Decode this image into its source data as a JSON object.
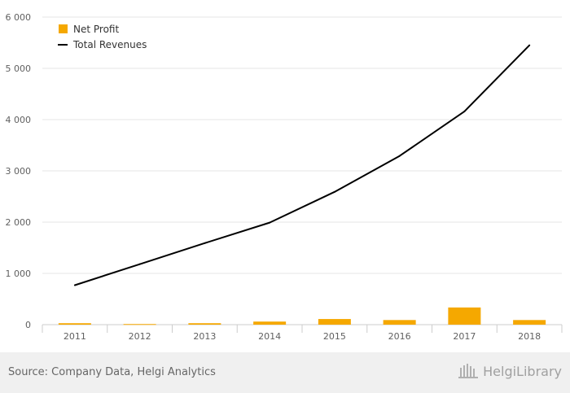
{
  "chart_data": {
    "type": "bar",
    "categories": [
      "2011",
      "2012",
      "2013",
      "2014",
      "2015",
      "2016",
      "2017",
      "2018"
    ],
    "series": [
      {
        "name": "Net Profit",
        "kind": "bar",
        "color": "#f5a800",
        "values": [
          28,
          12,
          28,
          60,
          110,
          90,
          335,
          90
        ]
      },
      {
        "name": "Total Revenues",
        "kind": "line",
        "color": "#000000",
        "values": [
          770,
          1180,
          1590,
          1990,
          2590,
          3290,
          4160,
          5450
        ]
      }
    ],
    "y_ticks": [
      {
        "value": 0,
        "label": "0"
      },
      {
        "value": 1000,
        "label": "1 000"
      },
      {
        "value": 2000,
        "label": "2 000"
      },
      {
        "value": 3000,
        "label": "3 000"
      },
      {
        "value": 4000,
        "label": "4 000"
      },
      {
        "value": 5000,
        "label": "5 000"
      },
      {
        "value": 6000,
        "label": "6 000"
      }
    ],
    "ylim": [
      0,
      6000
    ],
    "grid": true,
    "legend": {
      "position": "top-left",
      "items": [
        "Net Profit",
        "Total Revenues"
      ]
    },
    "title": "",
    "xlabel": "",
    "ylabel": ""
  },
  "footer": {
    "source": "Source: Company Data, Helgi Analytics",
    "brand": "HelgiLibrary"
  }
}
